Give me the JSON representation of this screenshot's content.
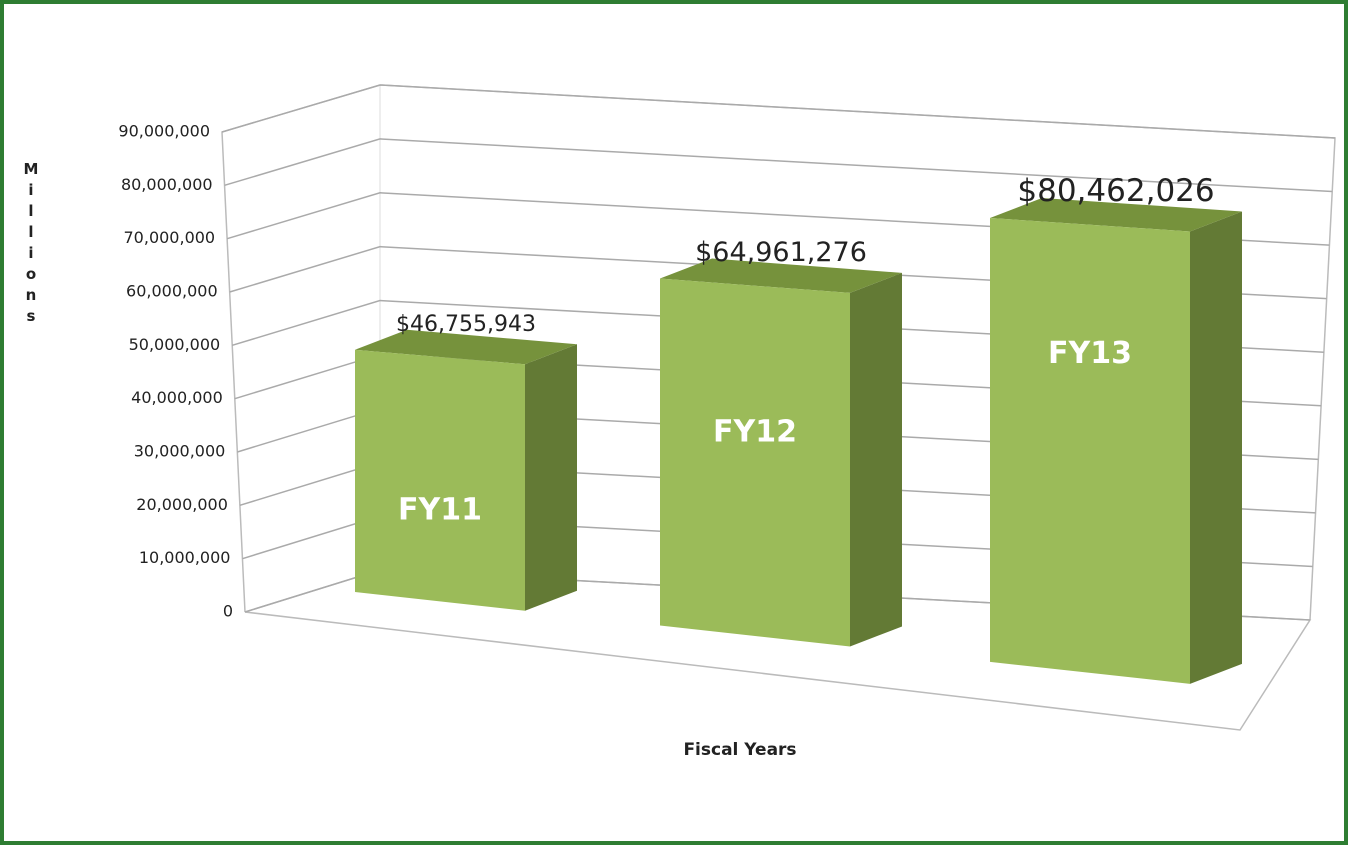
{
  "chart_data": {
    "type": "bar",
    "categories": [
      "FY11",
      "FY12",
      "FY13"
    ],
    "values": [
      46755943,
      64961276,
      80462026
    ],
    "value_labels": [
      "$46,755,943",
      "$64,961,276",
      "$80,462,026"
    ],
    "color": "#9bbb59",
    "ylim": [
      0,
      90000000
    ],
    "yticks": [
      0,
      {
        "value": 10000000,
        "label": "10,000,000"
      },
      {
        "value": 20000000,
        "label": "20,000,000"
      },
      {
        "value": 30000000,
        "label": "30,000,000"
      },
      {
        "value": 40000000,
        "label": "40,000,000"
      },
      {
        "value": 50000000,
        "label": "50,000,000"
      },
      {
        "value": 60000000,
        "label": "60,000,000"
      },
      {
        "value": 70000000,
        "label": "70,000,000"
      },
      {
        "value": 80000000,
        "label": "80,000,000"
      },
      {
        "value": 90000000,
        "label": "90,000,000"
      }
    ],
    "y_label": "Millions",
    "x_label": "Fiscal Years",
    "grid": true
  }
}
